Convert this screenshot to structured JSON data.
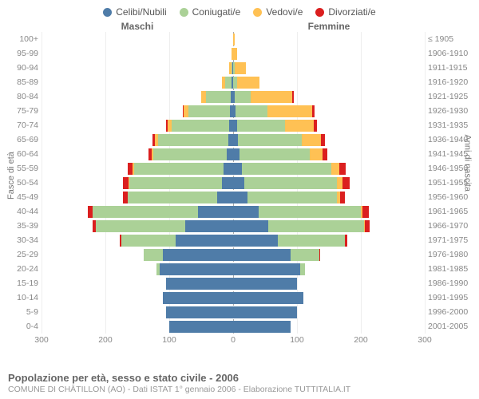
{
  "type": "population-pyramid",
  "legend": [
    {
      "label": "Celibi/Nubili",
      "color": "#4f7ca8"
    },
    {
      "label": "Coniugati/e",
      "color": "#abd197"
    },
    {
      "label": "Vedovi/e",
      "color": "#ffc154"
    },
    {
      "label": "Divorziati/e",
      "color": "#db1f1f"
    }
  ],
  "headers": {
    "male": "Maschi",
    "female": "Femmine"
  },
  "y_left_title": "Fasce di età",
  "y_right_title": "Anni di nascita",
  "x_max": 300,
  "x_ticks": [
    300,
    200,
    100,
    0,
    100,
    200,
    300
  ],
  "title": "Popolazione per età, sesso e stato civile - 2006",
  "subtitle": "COMUNE DI CHÂTILLON (AO) - Dati ISTAT 1° gennaio 2006 - Elaborazione TUTTITALIA.IT",
  "background_color": "#ffffff",
  "grid_color": "#eeeeee",
  "center_line_color": "#aaaaaa",
  "label_fontsize": 10.5,
  "rows": [
    {
      "age": "100+",
      "birth": "≤ 1905",
      "m": [
        0,
        0,
        0,
        0
      ],
      "f": [
        0,
        0,
        2,
        0
      ]
    },
    {
      "age": "95-99",
      "birth": "1906-1910",
      "m": [
        0,
        0,
        2,
        0
      ],
      "f": [
        0,
        0,
        6,
        0
      ]
    },
    {
      "age": "90-94",
      "birth": "1911-1915",
      "m": [
        1,
        2,
        3,
        0
      ],
      "f": [
        0,
        2,
        18,
        0
      ]
    },
    {
      "age": "85-89",
      "birth": "1916-1920",
      "m": [
        2,
        10,
        5,
        0
      ],
      "f": [
        0,
        6,
        35,
        0
      ]
    },
    {
      "age": "80-84",
      "birth": "1921-1925",
      "m": [
        4,
        38,
        8,
        0
      ],
      "f": [
        3,
        25,
        65,
        2
      ]
    },
    {
      "age": "75-79",
      "birth": "1926-1930",
      "m": [
        5,
        65,
        8,
        1
      ],
      "f": [
        4,
        50,
        70,
        3
      ]
    },
    {
      "age": "70-74",
      "birth": "1931-1935",
      "m": [
        6,
        90,
        6,
        3
      ],
      "f": [
        6,
        75,
        45,
        5
      ]
    },
    {
      "age": "65-69",
      "birth": "1936-1940",
      "m": [
        8,
        110,
        4,
        4
      ],
      "f": [
        8,
        100,
        30,
        6
      ]
    },
    {
      "age": "60-64",
      "birth": "1941-1945",
      "m": [
        10,
        115,
        3,
        4
      ],
      "f": [
        10,
        110,
        20,
        7
      ]
    },
    {
      "age": "55-59",
      "birth": "1946-1950",
      "m": [
        15,
        140,
        2,
        8
      ],
      "f": [
        14,
        140,
        12,
        10
      ]
    },
    {
      "age": "50-54",
      "birth": "1951-1955",
      "m": [
        18,
        145,
        1,
        9
      ],
      "f": [
        18,
        145,
        8,
        12
      ]
    },
    {
      "age": "45-49",
      "birth": "1956-1960",
      "m": [
        25,
        140,
        0,
        7
      ],
      "f": [
        22,
        140,
        5,
        8
      ]
    },
    {
      "age": "40-44",
      "birth": "1961-1965",
      "m": [
        55,
        165,
        0,
        8
      ],
      "f": [
        40,
        160,
        3,
        10
      ]
    },
    {
      "age": "35-39",
      "birth": "1966-1970",
      "m": [
        75,
        140,
        0,
        5
      ],
      "f": [
        55,
        150,
        1,
        8
      ]
    },
    {
      "age": "30-34",
      "birth": "1971-1975",
      "m": [
        90,
        85,
        0,
        2
      ],
      "f": [
        70,
        105,
        0,
        4
      ]
    },
    {
      "age": "25-29",
      "birth": "1976-1980",
      "m": [
        110,
        30,
        0,
        0
      ],
      "f": [
        90,
        45,
        0,
        1
      ]
    },
    {
      "age": "20-24",
      "birth": "1981-1985",
      "m": [
        115,
        5,
        0,
        0
      ],
      "f": [
        105,
        8,
        0,
        0
      ]
    },
    {
      "age": "15-19",
      "birth": "1986-1990",
      "m": [
        105,
        0,
        0,
        0
      ],
      "f": [
        100,
        0,
        0,
        0
      ]
    },
    {
      "age": "10-14",
      "birth": "1991-1995",
      "m": [
        110,
        0,
        0,
        0
      ],
      "f": [
        110,
        0,
        0,
        0
      ]
    },
    {
      "age": "5-9",
      "birth": "1996-2000",
      "m": [
        105,
        0,
        0,
        0
      ],
      "f": [
        100,
        0,
        0,
        0
      ]
    },
    {
      "age": "0-4",
      "birth": "2001-2005",
      "m": [
        100,
        0,
        0,
        0
      ],
      "f": [
        90,
        0,
        0,
        0
      ]
    }
  ]
}
